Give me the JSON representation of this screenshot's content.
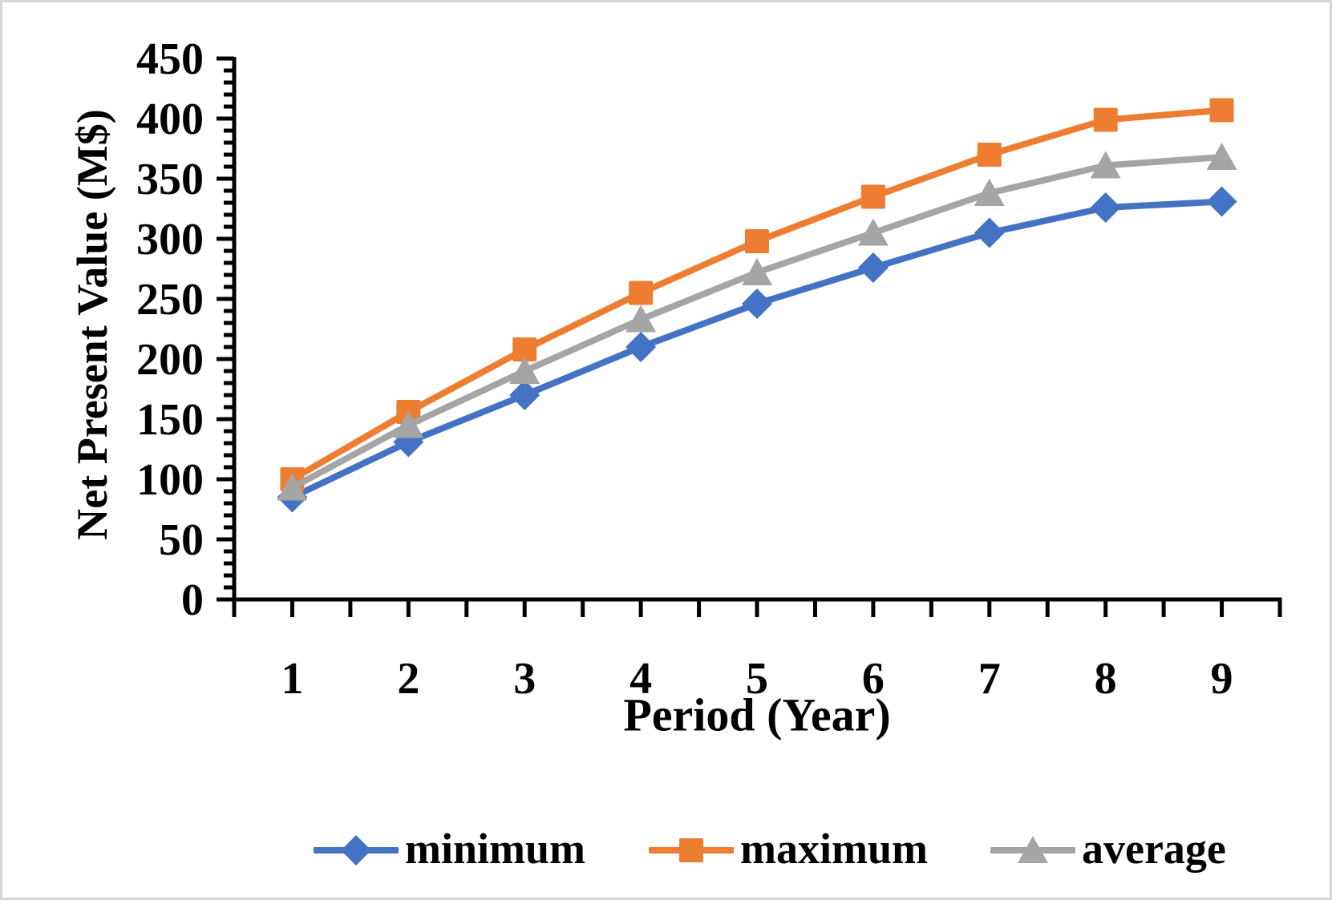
{
  "chart_data": {
    "type": "line",
    "title": "",
    "xlabel": "Period (Year)",
    "ylabel": "Net Present Value (M$)",
    "x": [
      1,
      2,
      3,
      4,
      5,
      6,
      7,
      8,
      9
    ],
    "x_ticks": [
      "1",
      "2",
      "3",
      "4",
      "5",
      "6",
      "7",
      "8",
      "9"
    ],
    "y_ticks": [
      "0",
      "50",
      "100",
      "150",
      "200",
      "250",
      "300",
      "350",
      "400",
      "450"
    ],
    "ylim": [
      0,
      450
    ],
    "xlim": [
      0.5,
      9.5
    ],
    "y_tick_step": 50,
    "y_minor_step": 10,
    "x_minor_step": 0.5,
    "grid": false,
    "legend_position": "bottom",
    "axis_color": "#000000",
    "series": [
      {
        "name": "minimum",
        "color": "#4472C4",
        "marker": "diamond",
        "values": [
          85,
          131,
          170,
          210,
          246,
          276,
          305,
          326,
          331
        ]
      },
      {
        "name": "maximum",
        "color": "#ED7D31",
        "marker": "square",
        "values": [
          100,
          156,
          208,
          255,
          298,
          335,
          370,
          399,
          407
        ]
      },
      {
        "name": "average",
        "color": "#A5A5A5",
        "marker": "triangle",
        "values": [
          93,
          145,
          190,
          233,
          272,
          305,
          338,
          361,
          368
        ]
      }
    ]
  }
}
